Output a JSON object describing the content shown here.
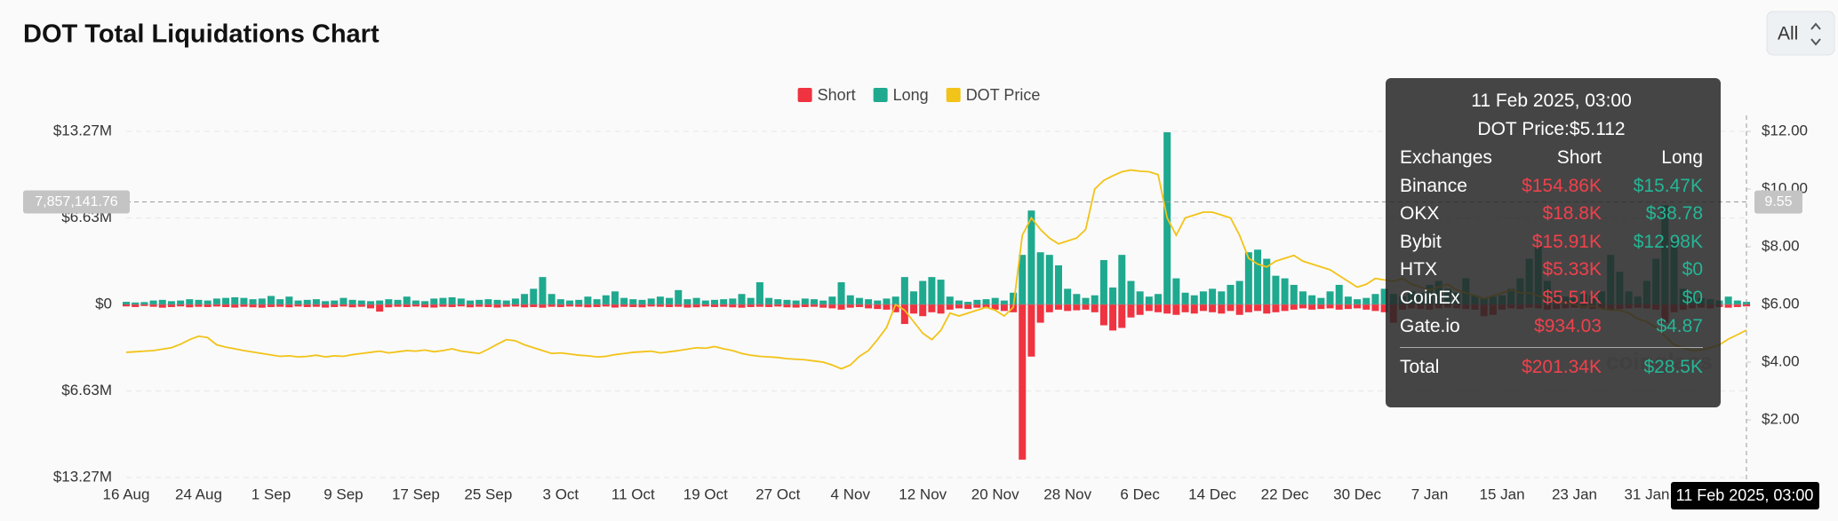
{
  "select": "All",
  "watermark": "coinglass",
  "chart_data": {
    "type": "bar",
    "title": "DOT Total Liquidations Chart",
    "legend": "top",
    "grid": true,
    "categories": [
      "16 Aug",
      null,
      null,
      null,
      null,
      null,
      null,
      null,
      "24 Aug",
      null,
      null,
      null,
      null,
      null,
      null,
      null,
      "1 Sep",
      null,
      null,
      null,
      null,
      null,
      null,
      null,
      "9 Sep",
      null,
      null,
      null,
      null,
      null,
      null,
      null,
      "17 Sep",
      null,
      null,
      null,
      null,
      null,
      null,
      null,
      "25 Sep",
      null,
      null,
      null,
      null,
      null,
      null,
      null,
      "3 Oct",
      null,
      null,
      null,
      null,
      null,
      null,
      null,
      "11 Oct",
      null,
      null,
      null,
      null,
      null,
      null,
      null,
      "19 Oct",
      null,
      null,
      null,
      null,
      null,
      null,
      null,
      "27 Oct",
      null,
      null,
      null,
      null,
      null,
      null,
      null,
      "4 Nov",
      null,
      null,
      null,
      null,
      null,
      null,
      null,
      "12 Nov",
      null,
      null,
      null,
      null,
      null,
      null,
      null,
      "20 Nov",
      null,
      null,
      null,
      null,
      null,
      null,
      null,
      "28 Nov",
      null,
      null,
      null,
      null,
      null,
      null,
      null,
      "6 Dec",
      null,
      null,
      null,
      null,
      null,
      null,
      null,
      "14 Dec",
      null,
      null,
      null,
      null,
      null,
      null,
      null,
      "22 Dec",
      null,
      null,
      null,
      null,
      null,
      null,
      null,
      "30 Dec",
      null,
      null,
      null,
      null,
      null,
      null,
      null,
      "7 Jan",
      null,
      null,
      null,
      null,
      null,
      null,
      null,
      "15 Jan",
      null,
      null,
      null,
      null,
      null,
      null,
      null,
      "23 Jan",
      null,
      null,
      null,
      null,
      null,
      null,
      null,
      "31 Jan",
      null,
      null,
      null,
      null,
      null,
      null,
      null,
      null,
      null,
      null,
      null
    ],
    "ylim": [
      -13270000,
      13270000
    ],
    "yticks": [
      {
        "value": 13270000,
        "label": "$13.27M"
      },
      {
        "value": 6630000,
        "label": "$6.63M"
      },
      {
        "value": 0,
        "label": "$0"
      },
      {
        "value": -6630000,
        "label": "$6.63M"
      },
      {
        "value": -13270000,
        "label": "$13.27M"
      }
    ],
    "y2lim": [
      0,
      12
    ],
    "y2ticks": [
      {
        "value": 2,
        "label": "$2.00"
      },
      {
        "value": 4,
        "label": "$4.00"
      },
      {
        "value": 6,
        "label": "$6.00"
      },
      {
        "value": 8,
        "label": "$8.00"
      },
      {
        "value": 10,
        "label": "$10.00"
      },
      {
        "value": 12,
        "label": "$12.00"
      }
    ],
    "series": [
      {
        "name": "Short",
        "type": "bar",
        "color": "#ef3340",
        "values": [
          -150000,
          -200000,
          -120000,
          -180000,
          -250000,
          -200000,
          -150000,
          -220000,
          -180000,
          -200000,
          -160000,
          -200000,
          -240000,
          -180000,
          -220000,
          -250000,
          -200000,
          -180000,
          -220000,
          -160000,
          -200000,
          -180000,
          -240000,
          -200000,
          -160000,
          -220000,
          -180000,
          -300000,
          -550000,
          -220000,
          -180000,
          -200000,
          -160000,
          -220000,
          -240000,
          -180000,
          -200000,
          -150000,
          -220000,
          -180000,
          -200000,
          -240000,
          -180000,
          -160000,
          -220000,
          -200000,
          -250000,
          -180000,
          -200000,
          -160000,
          -180000,
          -220000,
          -200000,
          -160000,
          -240000,
          -180000,
          -200000,
          -220000,
          -160000,
          -180000,
          -200000,
          -180000,
          -240000,
          -220000,
          -160000,
          -200000,
          -180000,
          -220000,
          -250000,
          -200000,
          -180000,
          -200000,
          -160000,
          -220000,
          -240000,
          -200000,
          -180000,
          -250000,
          -300000,
          -400000,
          -250000,
          -200000,
          -300000,
          -350000,
          -400000,
          -600000,
          -1500000,
          -700000,
          -900000,
          -600000,
          -700000,
          -400000,
          -300000,
          -350000,
          -250000,
          -300000,
          -400000,
          -500000,
          -600000,
          -11900000,
          -4000000,
          -1400000,
          -600000,
          -400000,
          -500000,
          -450000,
          -400000,
          -600000,
          -1600000,
          -2000000,
          -1800000,
          -1000000,
          -800000,
          -500000,
          -600000,
          -700000,
          -800000,
          -600000,
          -700000,
          -500000,
          -600000,
          -700000,
          -500000,
          -800000,
          -600000,
          -500000,
          -700000,
          -600000,
          -500000,
          -400000,
          -300000,
          -400000,
          -350000,
          -300000,
          -400000,
          -350000,
          -300000,
          -400000,
          -500000,
          -600000,
          -1400000,
          -400000,
          -300000,
          -350000,
          -400000,
          -300000,
          -250000,
          -300000,
          -350000,
          -400000,
          -900000,
          -800000,
          -400000,
          -300000,
          -350000,
          -250000,
          -300000,
          -400000,
          -350000,
          -300000,
          -250000,
          -300000,
          -350000,
          -300000,
          -400000,
          -350000,
          -300000,
          -250000,
          -300000,
          -400000,
          -1400000,
          -600000,
          -400000,
          -300000,
          -250000,
          -300000,
          -200000,
          -250000,
          -200000,
          -150000
        ]
      },
      {
        "name": "Long",
        "type": "bar",
        "color": "#1fa98f",
        "values": [
          200000,
          150000,
          180000,
          300000,
          350000,
          250000,
          300000,
          400000,
          350000,
          300000,
          450000,
          500000,
          550000,
          500000,
          400000,
          450000,
          650000,
          400000,
          600000,
          300000,
          350000,
          400000,
          250000,
          300000,
          500000,
          350000,
          300000,
          250000,
          300000,
          400000,
          350000,
          600000,
          300000,
          250000,
          450000,
          500000,
          550000,
          450000,
          300000,
          350000,
          400000,
          350000,
          300000,
          450000,
          800000,
          1200000,
          2100000,
          800000,
          400000,
          300000,
          350000,
          600000,
          400000,
          700000,
          1000000,
          500000,
          400000,
          350000,
          450000,
          600000,
          500000,
          1100000,
          400000,
          500000,
          300000,
          350000,
          400000,
          450000,
          800000,
          500000,
          1700000,
          500000,
          400000,
          350000,
          300000,
          450000,
          400000,
          300000,
          600000,
          1700000,
          700000,
          500000,
          400000,
          300000,
          450000,
          600000,
          2100000,
          1000000,
          1800000,
          2100000,
          1900000,
          600000,
          300000,
          200000,
          350000,
          400000,
          500000,
          300000,
          900000,
          3800000,
          7200000,
          4000000,
          3800000,
          3000000,
          1200000,
          800000,
          500000,
          700000,
          3400000,
          1300000,
          3800000,
          1800000,
          1000000,
          600000,
          800000,
          13200000,
          2000000,
          900000,
          700000,
          1000000,
          1200000,
          1000000,
          1500000,
          1800000,
          4000000,
          4200000,
          3500000,
          2200000,
          2000000,
          1500000,
          1000000,
          700000,
          500000,
          1000000,
          1500000,
          600000,
          400000,
          500000,
          800000,
          1200000,
          800000,
          600000,
          1000000,
          900000,
          1500000,
          1800000,
          1200000,
          900000,
          2000000,
          700000,
          500000,
          600000,
          700000,
          1200000,
          2000000,
          3500000,
          4500000,
          1800000,
          900000,
          600000,
          500000,
          800000,
          700000,
          1000000,
          3800000,
          2500000,
          1000000,
          600000,
          1800000,
          3500000,
          7600000,
          5000000,
          1200000,
          800000,
          500000,
          400000,
          300000,
          600000,
          300000,
          200000
        ]
      },
      {
        "name": "DOT Price",
        "type": "line",
        "axis": "y2",
        "color": "#f2c318",
        "values": [
          4.34,
          4.36,
          4.38,
          4.4,
          4.45,
          4.5,
          4.62,
          4.78,
          4.9,
          4.85,
          4.6,
          4.52,
          4.46,
          4.4,
          4.35,
          4.3,
          4.25,
          4.2,
          4.22,
          4.18,
          4.2,
          4.24,
          4.18,
          4.22,
          4.2,
          4.26,
          4.3,
          4.34,
          4.38,
          4.32,
          4.36,
          4.4,
          4.38,
          4.42,
          4.36,
          4.4,
          4.46,
          4.38,
          4.34,
          4.3,
          4.45,
          4.62,
          4.78,
          4.74,
          4.6,
          4.5,
          4.4,
          4.3,
          4.32,
          4.28,
          4.24,
          4.22,
          4.18,
          4.2,
          4.26,
          4.3,
          4.34,
          4.36,
          4.38,
          4.32,
          4.36,
          4.4,
          4.45,
          4.5,
          4.48,
          4.54,
          4.46,
          4.4,
          4.3,
          4.24,
          4.2,
          4.18,
          4.16,
          4.12,
          4.1,
          4.08,
          4.04,
          4.0,
          3.9,
          3.77,
          3.9,
          4.2,
          4.4,
          4.78,
          5.2,
          6.0,
          5.8,
          5.4,
          5.0,
          4.78,
          5.1,
          5.7,
          5.6,
          5.7,
          5.8,
          5.9,
          5.8,
          5.6,
          5.9,
          8.4,
          9.0,
          8.6,
          8.3,
          8.1,
          8.2,
          8.3,
          8.6,
          10.0,
          10.3,
          10.46,
          10.6,
          10.66,
          10.62,
          10.6,
          10.5,
          9.0,
          8.4,
          9.0,
          9.1,
          9.2,
          9.2,
          9.1,
          9.0,
          8.4,
          7.6,
          7.4,
          7.3,
          7.5,
          7.6,
          7.7,
          7.5,
          7.4,
          7.3,
          7.2,
          7.0,
          6.8,
          6.6,
          6.7,
          6.9,
          6.85,
          6.8,
          6.9,
          6.7,
          6.6,
          6.5,
          6.6,
          6.7,
          6.5,
          6.4,
          6.3,
          6.2,
          6.3,
          6.4,
          6.5,
          6.4,
          6.4,
          6.3,
          6.2,
          6.1,
          6.05,
          6.0,
          5.9,
          5.95,
          5.85,
          5.8,
          5.8,
          5.7,
          5.5,
          5.4,
          5.2,
          4.9,
          4.6,
          4.5,
          4.4,
          4.42,
          4.5,
          4.6,
          4.8,
          4.95,
          5.11
        ]
      }
    ],
    "crosshair": {
      "y": {
        "value": 7857141.76,
        "label": "7,857,141.76"
      },
      "y2": {
        "value": 9.55,
        "label": "9.55"
      },
      "x_label": "11 Feb 2025, 03:00"
    }
  },
  "tooltip": {
    "title": "11 Feb 2025, 03:00",
    "price": "DOT Price:$5.112",
    "header": [
      "Exchanges",
      "Short",
      "Long"
    ],
    "rows": [
      [
        "Binance",
        "$154.86K",
        "$15.47K"
      ],
      [
        "OKX",
        "$18.8K",
        "$38.78"
      ],
      [
        "Bybit",
        "$15.91K",
        "$12.98K"
      ],
      [
        "HTX",
        "$5.33K",
        "$0"
      ],
      [
        "CoinEx",
        "$5.51K",
        "$0"
      ],
      [
        "Gate.io",
        "$934.03",
        "$4.87"
      ]
    ],
    "total": [
      "Total",
      "$201.34K",
      "$28.5K"
    ]
  }
}
